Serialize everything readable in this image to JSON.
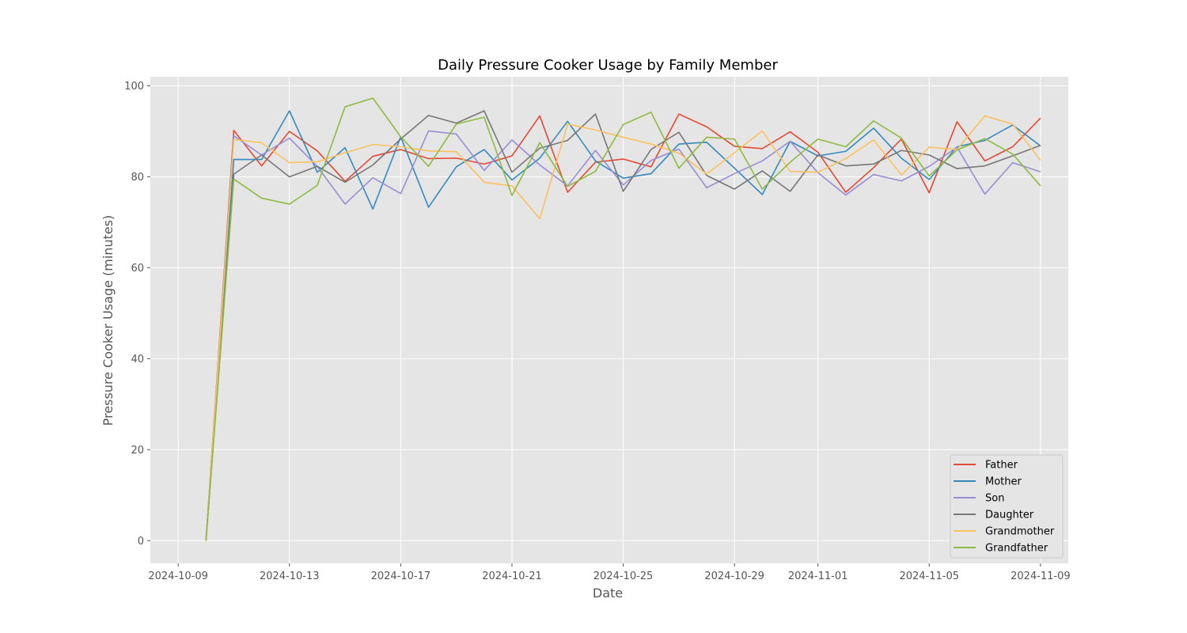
{
  "chart_data": {
    "type": "line",
    "title": "Daily Pressure Cooker Usage by Family Member",
    "xlabel": "Date",
    "ylabel": "Pressure Cooker Usage (minutes)",
    "ylim": [
      -5,
      102
    ],
    "xlim": [
      "2024-10-08",
      "2024-11-10"
    ],
    "grid": true,
    "legend_position": "lower-right",
    "xticks": [
      "2024-10-09",
      "2024-10-13",
      "2024-10-17",
      "2024-10-21",
      "2024-10-25",
      "2024-10-29",
      "2024-11-01",
      "2024-11-05",
      "2024-11-09"
    ],
    "yticks": [
      0,
      20,
      40,
      60,
      80,
      100
    ],
    "x": [
      "2024-10-10",
      "2024-10-11",
      "2024-10-12",
      "2024-10-13",
      "2024-10-14",
      "2024-10-15",
      "2024-10-16",
      "2024-10-17",
      "2024-10-18",
      "2024-10-19",
      "2024-10-20",
      "2024-10-21",
      "2024-10-22",
      "2024-10-23",
      "2024-10-24",
      "2024-10-25",
      "2024-10-26",
      "2024-10-27",
      "2024-10-28",
      "2024-10-29",
      "2024-10-30",
      "2024-10-31",
      "2024-11-01",
      "2024-11-02",
      "2024-11-03",
      "2024-11-04",
      "2024-11-05",
      "2024-11-06",
      "2024-11-07",
      "2024-11-08",
      "2024-11-09"
    ],
    "series": [
      {
        "name": "Father",
        "color": "#E24A33",
        "values": [
          0,
          90.2,
          82.4,
          90.0,
          85.7,
          79.0,
          84.5,
          86.0,
          84.0,
          84.1,
          82.8,
          84.6,
          93.4,
          76.6,
          83.2,
          83.9,
          82.2,
          93.8,
          91.0,
          86.7,
          86.2,
          89.9,
          85.4,
          76.6,
          82.0,
          88.3,
          76.5,
          92.1,
          83.5,
          86.6,
          92.9
        ]
      },
      {
        "name": "Mother",
        "color": "#348ABD",
        "values": [
          0,
          83.8,
          83.8,
          94.5,
          81.0,
          86.4,
          72.9,
          88.8,
          73.3,
          82.2,
          86.0,
          79.3,
          84.1,
          92.2,
          83.5,
          79.7,
          80.7,
          87.2,
          87.6,
          81.9,
          76.1,
          87.8,
          84.6,
          85.6,
          90.7,
          84.1,
          79.4,
          86.6,
          88.0,
          91.4,
          86.8
        ]
      },
      {
        "name": "Son",
        "color": "#988ED5",
        "values": [
          0,
          89.0,
          84.8,
          88.5,
          82.3,
          74.0,
          79.8,
          76.3,
          90.1,
          89.4,
          81.4,
          88.1,
          82.6,
          78.0,
          85.8,
          78.2,
          83.6,
          86.1,
          77.6,
          80.7,
          83.5,
          87.8,
          80.9,
          76.0,
          80.5,
          79.1,
          82.3,
          86.5,
          76.2,
          83.1,
          81.1
        ]
      },
      {
        "name": "Daughter",
        "color": "#777777",
        "values": [
          0,
          80.6,
          84.8,
          80.0,
          82.3,
          78.8,
          82.6,
          88.3,
          93.5,
          91.8,
          94.5,
          81.0,
          86.3,
          88.0,
          93.8,
          76.8,
          86.0,
          89.8,
          80.3,
          77.3,
          81.3,
          76.8,
          84.8,
          82.4,
          82.8,
          85.8,
          84.8,
          81.8,
          82.4,
          84.6,
          86.9
        ]
      },
      {
        "name": "Grandmother",
        "color": "#FBC15E",
        "values": [
          0,
          88.2,
          87.5,
          83.1,
          83.3,
          85.3,
          87.1,
          86.6,
          85.7,
          85.5,
          78.8,
          78.0,
          70.8,
          91.6,
          90.3,
          88.7,
          87.2,
          85.2,
          80.6,
          85.3,
          90.1,
          81.2,
          81.0,
          84.0,
          88.1,
          80.4,
          86.5,
          86.0,
          93.4,
          91.6,
          83.6
        ]
      },
      {
        "name": "Grandfather",
        "color": "#8EBA42",
        "values": [
          0,
          79.5,
          75.3,
          74.0,
          78.1,
          95.4,
          97.3,
          88.8,
          82.3,
          91.6,
          93.1,
          75.9,
          87.5,
          77.9,
          81.2,
          91.5,
          94.2,
          81.9,
          88.7,
          88.3,
          77.3,
          83.2,
          88.3,
          86.6,
          92.3,
          88.5,
          80.2,
          85.9,
          88.4,
          85.0,
          78.0
        ]
      }
    ]
  }
}
